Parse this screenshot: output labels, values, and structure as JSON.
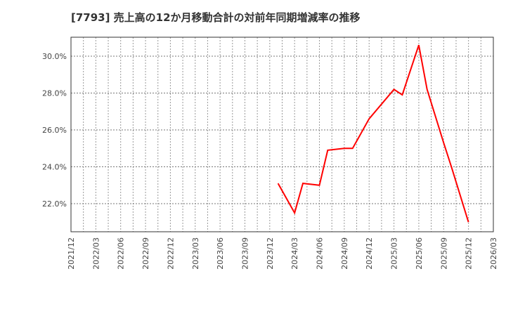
{
  "title": "[7793]  売上高の12か月移動合計の対前年同期増減率の推移",
  "chart_data": {
    "type": "line",
    "title": "[7793]  売上高の12か月移動合計の対前年同期増減率の推移",
    "xlabel": "",
    "ylabel": "",
    "x_tick_labels": [
      "2021/12",
      "2022/03",
      "2022/06",
      "2022/09",
      "2022/12",
      "2023/03",
      "2023/06",
      "2023/09",
      "2023/12",
      "2024/03",
      "2024/06",
      "2024/09",
      "2024/12",
      "2025/03",
      "2025/06",
      "2025/09",
      "2025/12",
      "2026/03"
    ],
    "y_tick_labels": [
      "22.0%",
      "24.0%",
      "26.0%",
      "28.0%",
      "30.0%"
    ],
    "y_ticks": [
      22,
      24,
      26,
      28,
      30
    ],
    "ylim": [
      20.5,
      31.0
    ],
    "grid": true,
    "legend": null,
    "series": [
      {
        "name": "売上高12か月移動合計 対前年同期増減率",
        "color": "#ff0000",
        "x": [
          "2024/01",
          "2024/03",
          "2024/04",
          "2024/06",
          "2024/07",
          "2024/09",
          "2024/10",
          "2024/12",
          "2025/03",
          "2025/04",
          "2025/06",
          "2025/07",
          "2025/09",
          "2025/10",
          "2025/12"
        ],
        "values": [
          23.1,
          21.5,
          23.1,
          23.0,
          24.9,
          25.0,
          25.0,
          26.6,
          28.2,
          27.9,
          30.6,
          28.2,
          25.3,
          23.9,
          21.0
        ]
      }
    ]
  }
}
